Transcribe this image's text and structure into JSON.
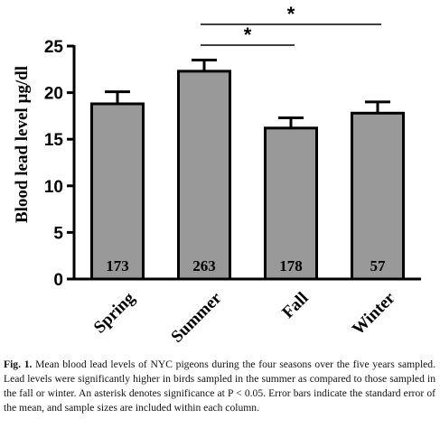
{
  "chart_data": {
    "type": "bar",
    "categories": [
      "Spring",
      "Summer",
      "Fall",
      "Winter"
    ],
    "values": [
      18.8,
      22.3,
      16.2,
      17.8
    ],
    "errors": [
      1.3,
      1.2,
      1.1,
      1.2
    ],
    "sample_sizes": [
      "173",
      "263",
      "178",
      "57"
    ],
    "ylabel": "Blood lead level µg/dl",
    "ylim": [
      0,
      25
    ],
    "yticks": [
      "0",
      "5",
      "10",
      "15",
      "20",
      "25"
    ],
    "bar_color": "#999999",
    "grid": false,
    "significance": [
      {
        "from": "Summer",
        "to": "Fall",
        "label": "*"
      },
      {
        "from": "Summer",
        "to": "Winter",
        "label": "*"
      }
    ]
  },
  "caption": {
    "label": "Fig. 1.",
    "text": "Mean blood lead levels of NYC pigeons during the four seasons over the five years sampled. Lead levels were significantly higher in birds sampled in the summer as compared to those sampled in the fall or winter. An asterisk denotes significance at P < 0.05. Error bars indicate the standard error of the mean, and sample sizes are included within each column."
  }
}
